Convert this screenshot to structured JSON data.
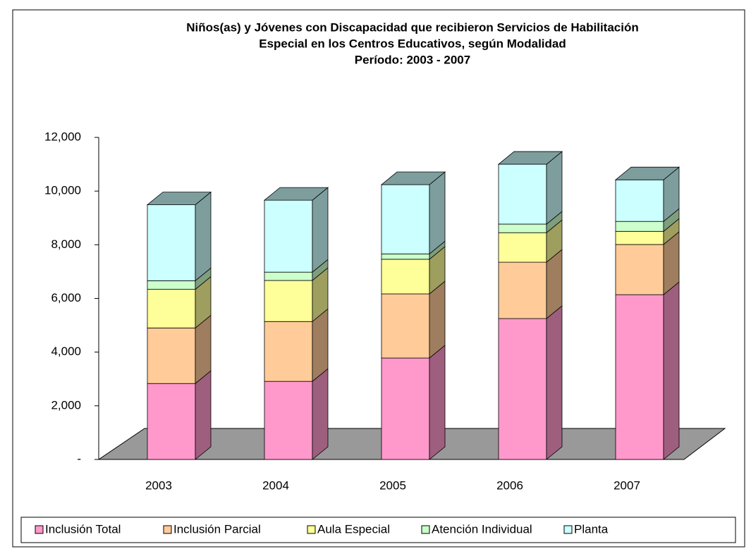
{
  "chart_data": {
    "type": "bar3d_stacked",
    "title": [
      "Niños(as) y Jóvenes con Discapacidad que recibieron Servicios de Habilitación",
      "Especial en los Centros Educativos, según Modalidad",
      "Período:  2003 - 2007"
    ],
    "categories": [
      "2003",
      "2004",
      "2005",
      "2006",
      "2007"
    ],
    "series": [
      {
        "name": "Inclusión Total",
        "color": "#ff99cc",
        "values": [
          2830,
          2910,
          3780,
          5250,
          6140
        ]
      },
      {
        "name": "Inclusión Parcial",
        "color": "#ffcc99",
        "values": [
          2070,
          2230,
          2390,
          2100,
          1870
        ]
      },
      {
        "name": "Aula Especial",
        "color": "#ffff99",
        "values": [
          1440,
          1530,
          1290,
          1100,
          490
        ]
      },
      {
        "name": "Atención Individual",
        "color": "#ccffcc",
        "values": [
          320,
          310,
          200,
          320,
          370
        ]
      },
      {
        "name": "Planta",
        "color": "#ccffff",
        "values": [
          2830,
          2680,
          2580,
          2230,
          1550
        ]
      }
    ],
    "ylim": [
      0,
      12000
    ],
    "yticks": [
      {
        "value": 0,
        "label": "-"
      },
      {
        "value": 2000,
        "label": "2,000"
      },
      {
        "value": 4000,
        "label": "4,000"
      },
      {
        "value": 6000,
        "label": "6,000"
      },
      {
        "value": 8000,
        "label": "8,000"
      },
      {
        "value": 10000,
        "label": "10,000"
      },
      {
        "value": 12000,
        "label": "12,000"
      }
    ],
    "legend": "bottom"
  }
}
